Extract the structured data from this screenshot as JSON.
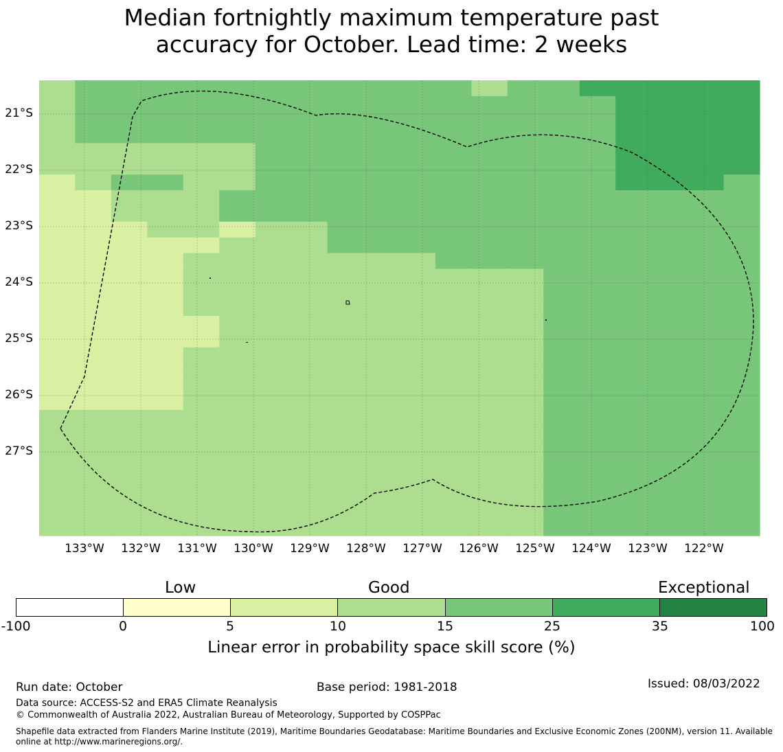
{
  "title": {
    "line1": "Median fortnightly maximum temperature past",
    "line2": "accuracy for October. Lead time: 2 weeks"
  },
  "map": {
    "lat_labels": [
      "21°S",
      "22°S",
      "23°S",
      "24°S",
      "25°S",
      "26°S",
      "27°S"
    ],
    "lon_labels": [
      "133°W",
      "132°W",
      "131°W",
      "130°W",
      "129°W",
      "128°W",
      "127°W",
      "126°W",
      "125°W",
      "124°W",
      "123°W",
      "122°W"
    ],
    "boundary": "exclusive economic zone outline (dashed)",
    "grid": {
      "legend_index": "0:<0 white, 1:0-5, 2:5-10, 3:10-15, 4:15-25, 5:25-35, 6:35-100",
      "rows": [
        "34444444444434455555",
        "34444444444444445555",
        "34444444444444445555",
        "34444444444444445555",
        "33333344444444445555",
        "33333344444444445555",
        "23443344444444445554",
        "22333444444444444444",
        "22333444444444444444",
        "22233233444444444444",
        "22222333444444444444",
        "22223333333444444444",
        "22223333333333444444",
        "22223333333333444444",
        "22223333333333444444",
        "22222333333333444444",
        "22222333333333444444",
        "22223333333333444444",
        "22223333333333444444",
        "22223333333333444444",
        "22223333333333444444",
        "33333333333333444444",
        "33333333333333444444",
        "33333333333333444444",
        "33333333333333444444",
        "33333333333333444444",
        "33333333333333444444",
        "33333333333333444444",
        "33333333333333444444"
      ]
    }
  },
  "legend": {
    "categories": [
      "Low",
      "Good",
      "Exceptional"
    ],
    "colors": [
      "#ffffff",
      "#ffffcc",
      "#d9f0a3",
      "#addd8e",
      "#78c679",
      "#41ab5d",
      "#238443"
    ],
    "ticks": [
      "-100",
      "0",
      "5",
      "10",
      "15",
      "25",
      "35",
      "100"
    ],
    "axis_label": "Linear error in probability space skill score (%)"
  },
  "footer": {
    "run_date": "Run date: October",
    "base_period": "Base period: 1981-2018",
    "issued": "Issued: 08/03/2022",
    "data_source": "Data source: ACCESS-S2 and ERA5 Climate Reanalysis",
    "copyright": "© Commonwealth of Australia 2022, Australian Bureau of Meteorology, Supported by COSPPac",
    "shapefile_line1": "Shapefile data extracted from Flanders Marine Institute (2019), Maritime Boundaries Geodatabase: Maritime Boundaries and Exclusive Economic Zones (200NM), version 11. Available",
    "shapefile_line2": "online at http://www.marineregions.org/."
  }
}
